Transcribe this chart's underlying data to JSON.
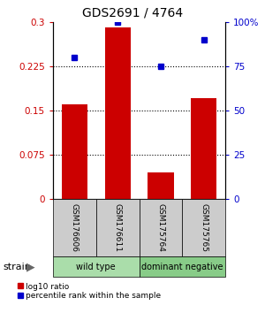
{
  "title": "GDS2691 / 4764",
  "categories": [
    "GSM176606",
    "GSM176611",
    "GSM175764",
    "GSM175765"
  ],
  "bar_values": [
    0.16,
    0.29,
    0.045,
    0.17
  ],
  "scatter_values": [
    80,
    100,
    75,
    90
  ],
  "bar_color": "#cc0000",
  "scatter_color": "#0000cc",
  "left_yticks": [
    0,
    0.075,
    0.15,
    0.225,
    0.3
  ],
  "left_yticklabels": [
    "0",
    "0.075",
    "0.15",
    "0.225",
    "0.3"
  ],
  "right_yticks": [
    0,
    25,
    50,
    75,
    100
  ],
  "right_yticklabels": [
    "0",
    "25",
    "50",
    "75",
    "100%"
  ],
  "ylim_left": [
    0,
    0.3
  ],
  "ylim_right": [
    0,
    100
  ],
  "groups": [
    {
      "label": "wild type",
      "indices": [
        0,
        1
      ],
      "color": "#aaddaa"
    },
    {
      "label": "dominant negative",
      "indices": [
        2,
        3
      ],
      "color": "#88cc88"
    }
  ],
  "strain_label": "strain",
  "legend_bar_label": "log10 ratio",
  "legend_scatter_label": "percentile rank within the sample",
  "gray_box_color": "#cccccc",
  "scatter_marker_size": 5
}
